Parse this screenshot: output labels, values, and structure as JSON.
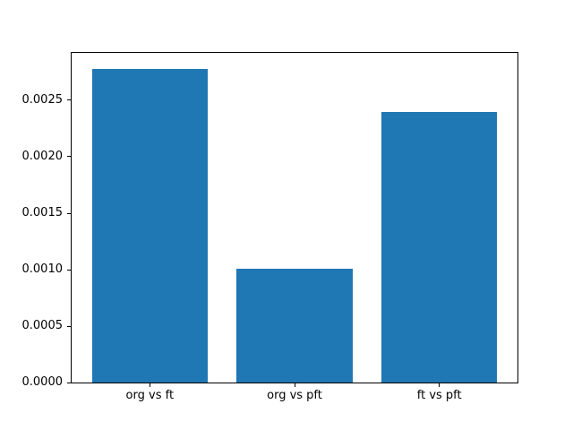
{
  "chart_data": {
    "type": "bar",
    "categories": [
      "org vs ft",
      "org vs pft",
      "ft vs pft"
    ],
    "values": [
      0.00278,
      0.00101,
      0.0024
    ],
    "title": "",
    "xlabel": "",
    "ylabel": "",
    "ylim": [
      0,
      0.00292
    ],
    "yticks": [
      0.0,
      0.0005,
      0.001,
      0.0015,
      0.002,
      0.0025
    ],
    "ytick_labels": [
      "0.0000",
      "0.0005",
      "0.0010",
      "0.0015",
      "0.0020",
      "0.0025"
    ],
    "bar_color": "#1f77b4",
    "bar_width_fraction": 0.8,
    "grid": false,
    "legend_position": "none",
    "frame_color": "#000000",
    "background_color": "#ffffff"
  }
}
